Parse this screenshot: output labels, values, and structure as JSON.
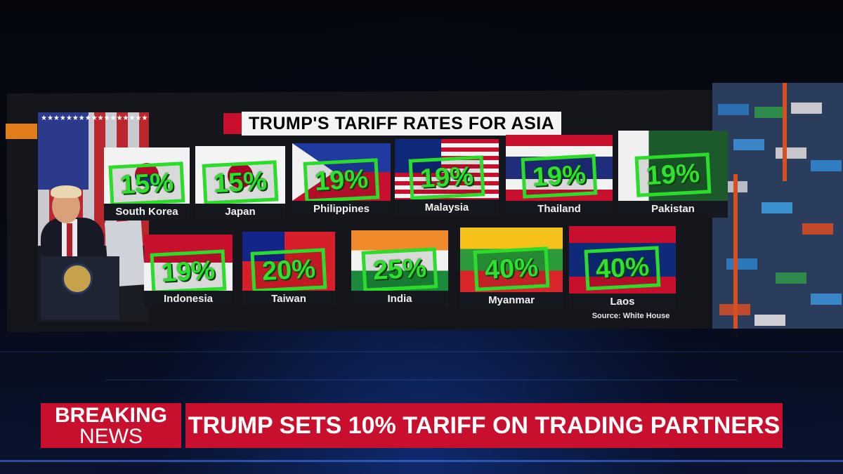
{
  "graphic": {
    "title": "TRUMP'S TARIFF RATES FOR ASIA",
    "source": "Source: White House",
    "countries": [
      {
        "name": "South Korea",
        "rate": "15%"
      },
      {
        "name": "Japan",
        "rate": "15%"
      },
      {
        "name": "Philippines",
        "rate": "19%"
      },
      {
        "name": "Malaysia",
        "rate": "19%"
      },
      {
        "name": "Thailand",
        "rate": "19%"
      },
      {
        "name": "Pakistan",
        "rate": "19%"
      },
      {
        "name": "Indonesia",
        "rate": "19%"
      },
      {
        "name": "Taiwan",
        "rate": "20%"
      },
      {
        "name": "India",
        "rate": "25%"
      },
      {
        "name": "Myanmar",
        "rate": "40%"
      },
      {
        "name": "Laos",
        "rate": "40%"
      }
    ]
  },
  "ticker": {
    "breaking_line1": "BREAKING",
    "breaking_line2": "NEWS",
    "headline": "TRUMP SETS 10% TARIFF ON TRADING PARTNERS"
  },
  "colors": {
    "breaking_red": "#c8102e",
    "rate_green": "#2bdc2b",
    "accent_orange": "#e07d1a"
  }
}
